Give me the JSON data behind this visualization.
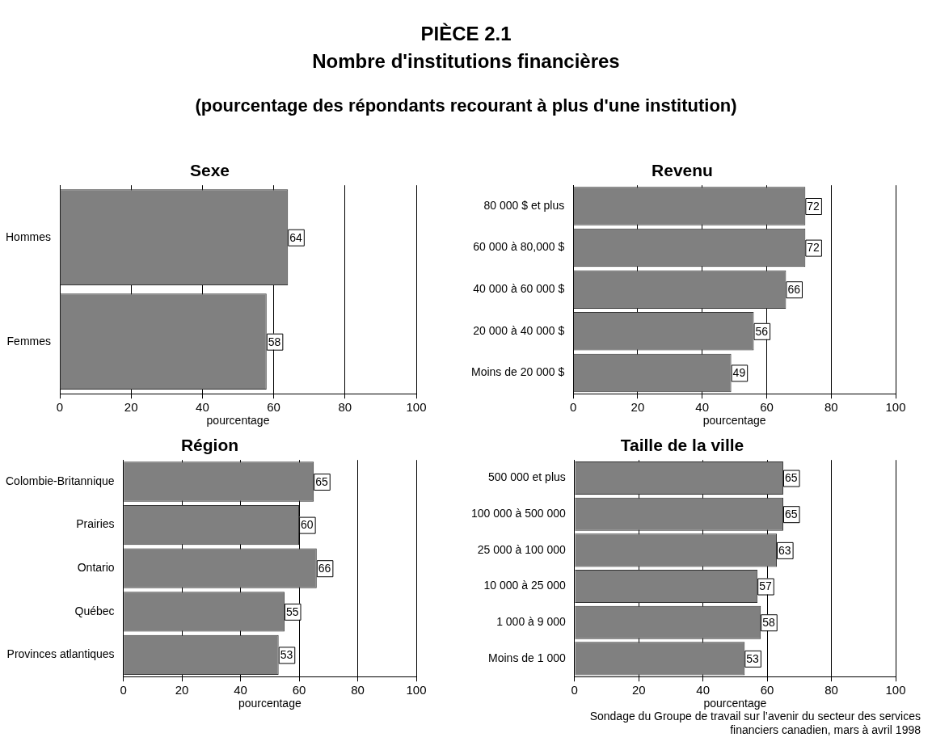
{
  "chart_data": [
    {
      "type": "other",
      "title": "PIÈCE 2.1",
      "subtitle": "Nombre d'institutions financières",
      "annotations": [
        "(pourcentage des répondants recourant à plus d'une institution)",
        "Sondage du Groupe de travail sur l’avenir du secteur des services financiers canadien, mars à avril 1998"
      ]
    },
    {
      "type": "bar",
      "orientation": "horizontal",
      "title": "Sexe",
      "categories": [
        "Hommes",
        "Femmes"
      ],
      "values": [
        64,
        58
      ],
      "color": "#808080",
      "xlabel": "pourcentage",
      "xlim": [
        0,
        100
      ],
      "xticks": [
        0,
        20,
        40,
        60,
        80,
        100
      ],
      "grid": "x",
      "data_labels": true,
      "legend": false
    },
    {
      "type": "bar",
      "orientation": "horizontal",
      "title": "Revenu",
      "categories": [
        "80 000 $ et plus",
        "60 000 à 80,000 $",
        "40 000 à 60 000 $",
        "20 000 à 40 000 $",
        "Moins de 20 000 $"
      ],
      "values": [
        72,
        72,
        66,
        56,
        49
      ],
      "color": "#808080",
      "xlabel": "pourcentage",
      "xlim": [
        0,
        100
      ],
      "xticks": [
        0,
        20,
        40,
        60,
        80,
        100
      ],
      "grid": "x",
      "data_labels": true,
      "legend": false
    },
    {
      "type": "bar",
      "orientation": "horizontal",
      "title": "Région",
      "categories": [
        "Colombie-Britannique",
        "Prairies",
        "Ontario",
        "Québec",
        "Provinces atlantiques"
      ],
      "values": [
        65,
        60,
        66,
        55,
        53
      ],
      "color": "#808080",
      "xlabel": "pourcentage",
      "xlim": [
        0,
        100
      ],
      "xticks": [
        0,
        20,
        40,
        60,
        80,
        100
      ],
      "grid": "x",
      "data_labels": true,
      "legend": false
    },
    {
      "type": "bar",
      "orientation": "horizontal",
      "title": "Taille de la ville",
      "categories": [
        "500 000 et plus",
        "100 000 à 500 000",
        "25 000 à 100 000",
        "10 000 à 25 000",
        "1 000 à 9 000",
        "Moins de 1 000"
      ],
      "values": [
        65,
        65,
        63,
        57,
        58,
        53
      ],
      "color": "#808080",
      "xlabel": "pourcentage",
      "xlim": [
        0,
        100
      ],
      "xticks": [
        0,
        20,
        40,
        60,
        80,
        100
      ],
      "grid": "x",
      "data_labels": true,
      "legend": false
    }
  ]
}
